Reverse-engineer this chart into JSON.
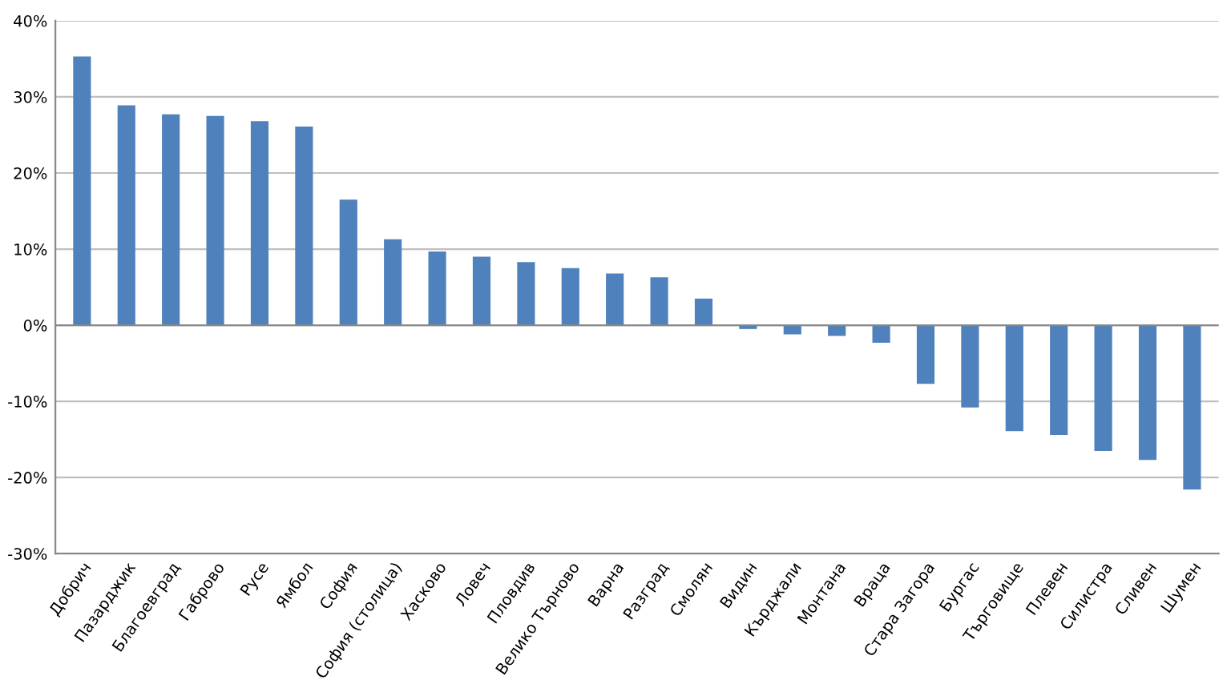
{
  "chart_data": {
    "type": "bar",
    "categories": [
      "Добрич",
      "Пазарджик",
      "Благоевград",
      "Габрово",
      "Русе",
      "Ямбол",
      "София",
      "София (столица)",
      "Хасково",
      "Ловеч",
      "Пловдив",
      "Велико Търново",
      "Варна",
      "Разград",
      "Смолян",
      "Видин",
      "Кърджали",
      "Монтана",
      "Враца",
      "Стара Загора",
      "Бургас",
      "Търговище",
      "Плевен",
      "Силистра",
      "Сливен",
      "Шумен"
    ],
    "values": [
      35.3,
      28.9,
      27.7,
      27.5,
      26.8,
      26.1,
      16.5,
      11.3,
      9.7,
      9.0,
      8.3,
      7.5,
      6.8,
      6.3,
      3.5,
      -0.5,
      -1.2,
      -1.4,
      -2.3,
      -7.7,
      -10.8,
      -13.9,
      -14.4,
      -16.5,
      -17.7,
      -21.6
    ],
    "color": "#4f81bd",
    "ylim": [
      -30,
      40
    ],
    "yticks": [
      {
        "value": -30,
        "label": "-30%"
      },
      {
        "value": -20,
        "label": "-20%"
      },
      {
        "value": -10,
        "label": "-10%"
      },
      {
        "value": 0,
        "label": "0%"
      },
      {
        "value": 10,
        "label": "10%"
      },
      {
        "value": 20,
        "label": "20%"
      },
      {
        "value": 30,
        "label": "30%"
      },
      {
        "value": 40,
        "label": "40%"
      }
    ],
    "grid": "y"
  }
}
